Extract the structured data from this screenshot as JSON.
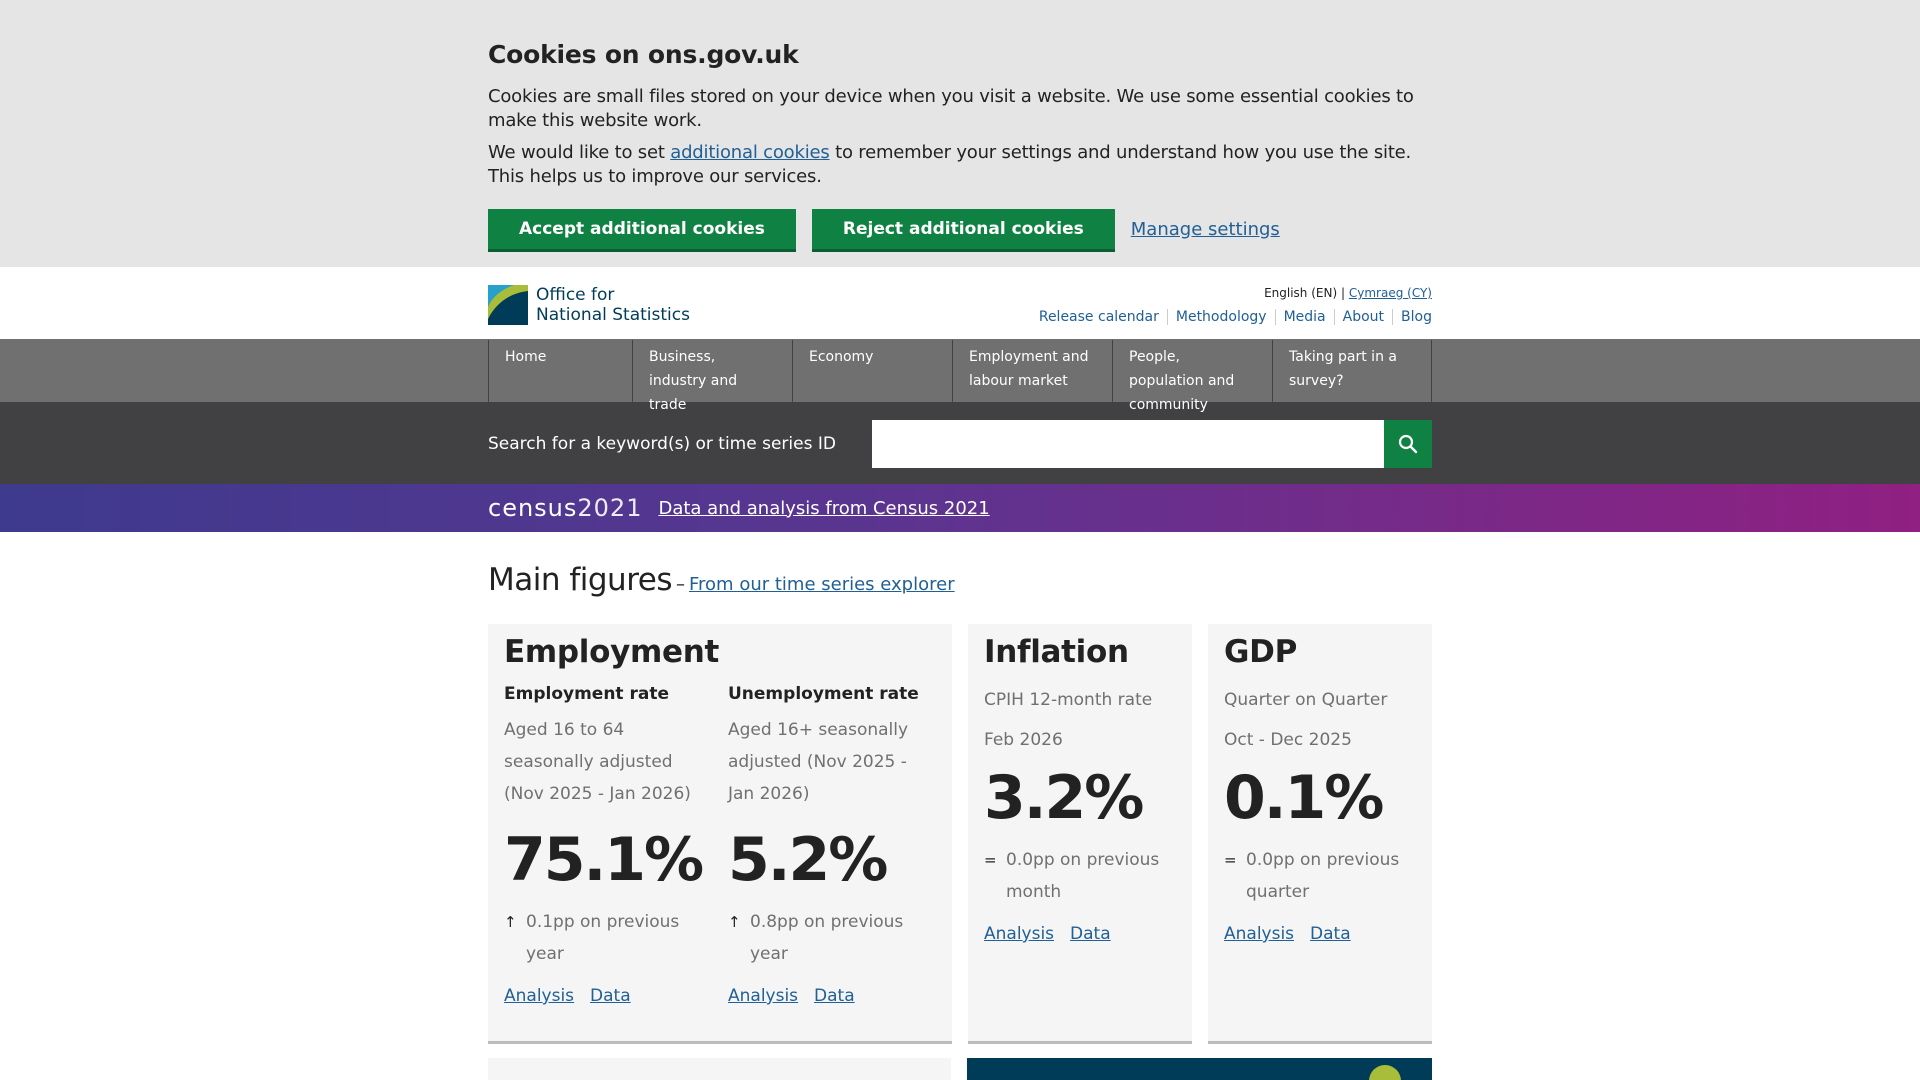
{
  "cookie_banner": {
    "title": "Cookies on ons.gov.uk",
    "para1": "Cookies are small files stored on your device when you visit a website. We use some essential cookies to make this website work.",
    "para2_before": "We would like to set ",
    "para2_link": "additional cookies",
    "para2_after": " to remember your settings and understand how you use the site. This helps us to improve our services.",
    "accept_label": "Accept additional cookies",
    "reject_label": "Reject additional cookies",
    "manage_label": "Manage settings"
  },
  "header": {
    "logo_line1": "Office for",
    "logo_line2": "National Statistics",
    "lang_current": "English (EN)",
    "lang_separator": "|",
    "lang_other": "Cymraeg (CY)",
    "utility_links": [
      "Release calendar",
      "Methodology",
      "Media",
      "About",
      "Blog"
    ]
  },
  "nav": {
    "items": [
      {
        "label": "Home"
      },
      {
        "label": "Business, industry and trade"
      },
      {
        "label": "Economy"
      },
      {
        "label": "Employment and labour market"
      },
      {
        "label": "People, population and community"
      },
      {
        "label": "Taking part in a survey?"
      }
    ]
  },
  "search": {
    "label": "Search for a keyword(s) or time series ID",
    "value": "",
    "icon": "search-icon"
  },
  "census": {
    "logo_word": "census",
    "logo_year": "2021",
    "link": "Data and analysis from Census 2021"
  },
  "main_figures": {
    "title": "Main figures",
    "dash": "–",
    "link": "From our time series explorer",
    "employment": {
      "title": "Employment",
      "rate": {
        "subtitle": "Employment rate",
        "desc": "Aged 16 to 64 seasonally adjusted (Nov 2025 - Jan 2026)",
        "value": "75.1%",
        "arrow": "↑",
        "change": "0.1pp on previous year",
        "analysis": "Analysis",
        "data": "Data"
      },
      "unemployment": {
        "subtitle": "Unemployment rate",
        "desc": "Aged 16+ seasonally adjusted (Nov 2025 - Jan 2026)",
        "value": "5.2%",
        "arrow": "↑",
        "change": "0.8pp on previous year",
        "analysis": "Analysis",
        "data": "Data"
      }
    },
    "inflation": {
      "title": "Inflation",
      "desc1": "CPIH 12-month rate",
      "desc2": "Feb 2026",
      "value": "3.2%",
      "arrow": "=",
      "change": "0.0pp on previous month",
      "analysis": "Analysis",
      "data": "Data"
    },
    "gdp": {
      "title": "GDP",
      "desc1": "Quarter on Quarter",
      "desc2": "Oct - Dec 2025",
      "value": "0.1%",
      "arrow": "=",
      "change": "0.0pp on previous quarter",
      "analysis": "Analysis",
      "data": "Data"
    }
  },
  "colors": {
    "accent_green": "#0f8243",
    "link_blue": "#206095",
    "nav_grey": "#707071",
    "search_bg": "#414042"
  }
}
